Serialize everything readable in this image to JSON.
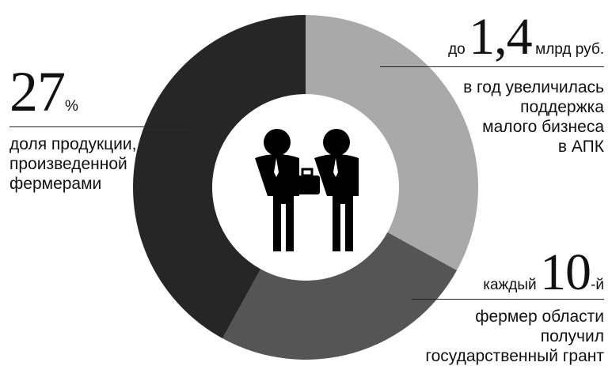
{
  "chart_data": {
    "type": "pie",
    "title": "",
    "slices": [
      {
        "value": 33,
        "color": "#a9a9a9"
      },
      {
        "value": 25,
        "color": "#555555"
      },
      {
        "value": 42,
        "color": "#262626"
      }
    ],
    "center_icon": "two-businessmen-shaking-hands-icon"
  },
  "callouts": {
    "left": {
      "number": "27",
      "unit": "%",
      "lines": [
        "доля продукции,",
        "произведенной",
        "фермерами"
      ]
    },
    "top_right": {
      "prefix": "до",
      "number": "1,4",
      "unit": "млрд руб.",
      "lines": [
        "в год увеличилась",
        "поддержка",
        "малого бизнеса",
        "в АПК"
      ]
    },
    "bottom_right": {
      "prefix": "каждый",
      "number": "10",
      "suffix": "-й",
      "lines": [
        "фермер области",
        "получил",
        "государственный грант"
      ]
    }
  }
}
